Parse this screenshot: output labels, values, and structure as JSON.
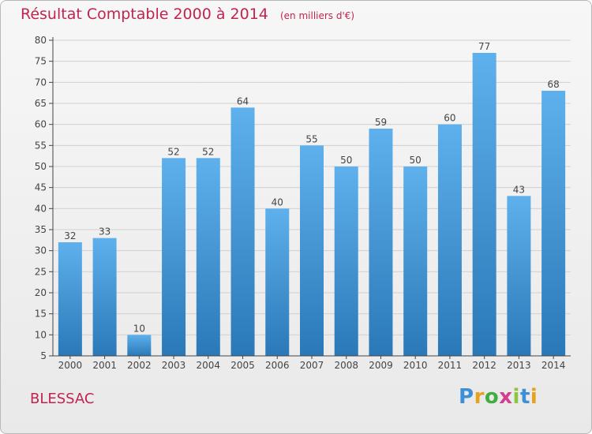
{
  "title": "Résultat Comptable 2000 à 2014",
  "unit_note": "(en milliers d'€)",
  "commune": "BLESSAC",
  "brand": {
    "letters": [
      "P",
      "r",
      "o",
      "x",
      "i",
      "t",
      "i"
    ],
    "colors": [
      "#3d8fd6",
      "#e8a11b",
      "#3fae3f",
      "#d43f8d",
      "#8cc63f",
      "#3d8fd6",
      "#e8a11b"
    ]
  },
  "colors": {
    "bar_top": "#5eb1ec",
    "bar_bottom": "#2a78b8",
    "title": "#c0244f",
    "axis": "#444444",
    "grid": "#d0d0d0"
  },
  "chart_data": {
    "type": "bar",
    "categories": [
      "2000",
      "2001",
      "2002",
      "2003",
      "2004",
      "2005",
      "2006",
      "2007",
      "2008",
      "2009",
      "2010",
      "2011",
      "2012",
      "2013",
      "2014"
    ],
    "values": [
      32,
      33,
      10,
      52,
      52,
      64,
      40,
      55,
      50,
      59,
      50,
      60,
      77,
      43,
      68
    ],
    "ylim": [
      5,
      80
    ],
    "yticks": [
      5,
      10,
      15,
      20,
      25,
      30,
      35,
      40,
      45,
      50,
      55,
      60,
      65,
      70,
      75,
      80
    ],
    "grid": true,
    "data_labels": true
  }
}
